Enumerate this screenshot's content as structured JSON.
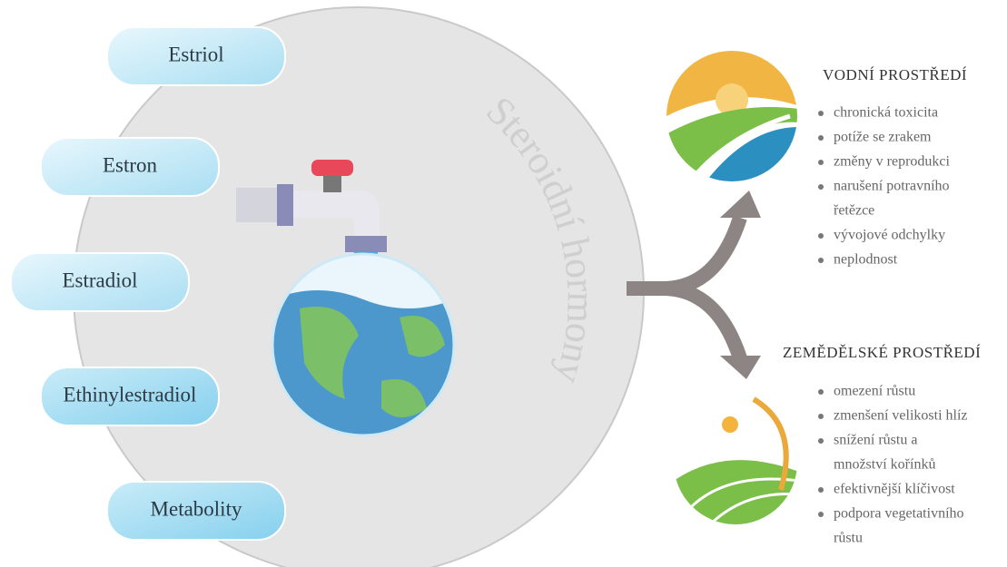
{
  "circle_label": "Steroidní hormony",
  "compounds": [
    "Estriol",
    "Estron",
    "Estradiol",
    "Ethinylestradiol",
    "Metabolity"
  ],
  "sections": [
    {
      "title": "VODNÍ PROSTŘEDÍ",
      "bullets": [
        [
          "chronická toxicita"
        ],
        [
          "potíže se zrakem"
        ],
        [
          "změny v reprodukci"
        ],
        [
          "narušení potravního",
          "řetězce"
        ],
        [
          "vývojové odchylky"
        ],
        [
          "neplodnost"
        ]
      ]
    },
    {
      "title": "ZEMĚDĚLSKÉ PROSTŘEDÍ",
      "bullets": [
        [
          "omezení růstu"
        ],
        [
          "zmenšení velikosti hlíz"
        ],
        [
          "snížení růstu a",
          "množství kořínků"
        ],
        [
          "efektivnější klíčivost"
        ],
        [
          "podpora vegetativního",
          "růstu"
        ]
      ]
    }
  ]
}
